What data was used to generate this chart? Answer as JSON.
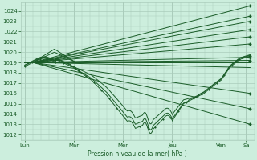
{
  "xlabel": "Pression niveau de la mer( hPa )",
  "bg_color": "#cceedd",
  "grid_color": "#aaccbb",
  "line_color": "#1a5c28",
  "ylim_bottom": 1011.5,
  "ylim_top": 1024.8,
  "yticks": [
    1012,
    1013,
    1014,
    1015,
    1016,
    1017,
    1018,
    1019,
    1020,
    1021,
    1022,
    1023,
    1024
  ],
  "day_labels": [
    "Lun",
    "Mar",
    "Mer",
    "Jeu",
    "Ven",
    "Sa"
  ],
  "day_positions": [
    0,
    48,
    96,
    144,
    192,
    216
  ],
  "xlim_left": -4,
  "xlim_right": 224,
  "total_hours": 220
}
